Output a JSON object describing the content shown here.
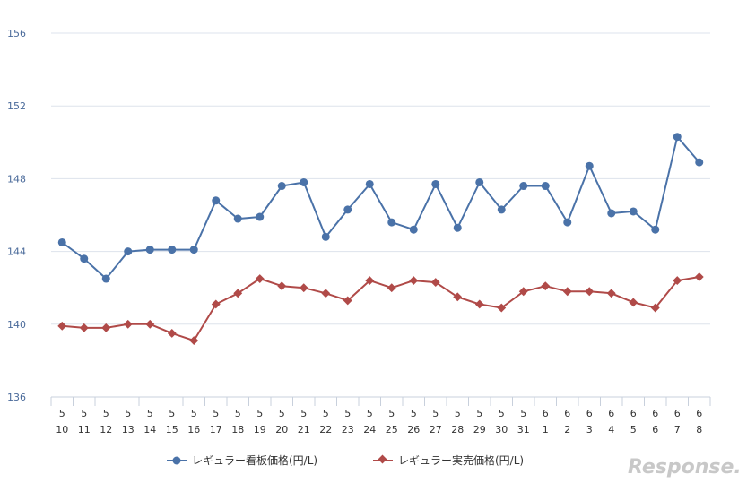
{
  "chart_data": {
    "type": "line",
    "categories": [
      [
        "5",
        "10"
      ],
      [
        "5",
        "11"
      ],
      [
        "5",
        "12"
      ],
      [
        "5",
        "13"
      ],
      [
        "5",
        "14"
      ],
      [
        "5",
        "15"
      ],
      [
        "5",
        "16"
      ],
      [
        "5",
        "17"
      ],
      [
        "5",
        "18"
      ],
      [
        "5",
        "19"
      ],
      [
        "5",
        "20"
      ],
      [
        "5",
        "21"
      ],
      [
        "5",
        "22"
      ],
      [
        "5",
        "23"
      ],
      [
        "5",
        "24"
      ],
      [
        "5",
        "25"
      ],
      [
        "5",
        "26"
      ],
      [
        "5",
        "27"
      ],
      [
        "5",
        "28"
      ],
      [
        "5",
        "29"
      ],
      [
        "5",
        "30"
      ],
      [
        "5",
        "31"
      ],
      [
        "6",
        "1"
      ],
      [
        "6",
        "2"
      ],
      [
        "6",
        "3"
      ],
      [
        "6",
        "4"
      ],
      [
        "6",
        "5"
      ],
      [
        "6",
        "6"
      ],
      [
        "6",
        "7"
      ],
      [
        "6",
        "8"
      ]
    ],
    "yticks": [
      "136",
      "140",
      "144",
      "148",
      "152",
      "156"
    ],
    "ylim": [
      136,
      156
    ],
    "grid": true,
    "legend_position": "bottom",
    "series": [
      {
        "name": "レギュラー看板価格(円/L)",
        "color": "#4a72a8",
        "marker": "circle",
        "values": [
          144.5,
          143.6,
          142.5,
          144.0,
          144.1,
          144.1,
          144.1,
          146.8,
          145.8,
          145.9,
          147.6,
          147.8,
          144.8,
          146.3,
          147.7,
          145.6,
          145.2,
          147.7,
          145.3,
          147.8,
          146.3,
          147.6,
          147.6,
          145.6,
          148.7,
          146.1,
          146.2,
          145.2,
          150.3,
          148.9
        ]
      },
      {
        "name": "レギュラー実売価格(円/L)",
        "color": "#b04a48",
        "marker": "diamond",
        "values": [
          139.9,
          139.8,
          139.8,
          140.0,
          140.0,
          139.5,
          139.1,
          141.1,
          141.7,
          142.5,
          142.1,
          142.0,
          141.7,
          141.3,
          142.4,
          142.0,
          142.4,
          142.3,
          141.5,
          141.1,
          140.9,
          141.8,
          142.1,
          141.8,
          141.8,
          141.7,
          141.2,
          140.9,
          142.4,
          142.6
        ]
      }
    ]
  },
  "watermark": "Response."
}
